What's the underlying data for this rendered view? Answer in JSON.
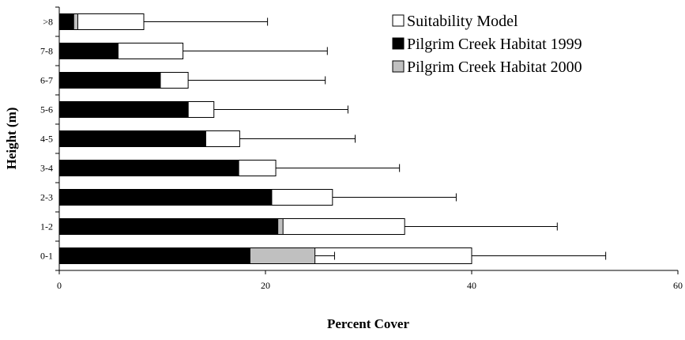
{
  "chart_data": {
    "type": "bar",
    "orientation": "horizontal",
    "stacked": false,
    "title": "",
    "xlabel": "Percent Cover",
    "ylabel": "Height (m)",
    "xlim": [
      0,
      60
    ],
    "xticks": [
      "0",
      "20",
      "40",
      "60"
    ],
    "grid": false,
    "legend_position": "top-right",
    "categories": [
      "0-1",
      "1-2",
      "2-3",
      "3-4",
      "4-5",
      "5-6",
      "6-7",
      "7-8",
      ">8"
    ],
    "series": [
      {
        "name": "Suitability Model",
        "color": "#ffffff",
        "values": [
          40,
          33.5,
          26.5,
          21,
          17.5,
          15,
          12.5,
          12,
          8.2
        ],
        "error": [
          13,
          14.8,
          12,
          12,
          11.2,
          13,
          13.3,
          14,
          12
        ]
      },
      {
        "name": "Pilgrim Creek Habitat 2000",
        "color": "#c0c0c0",
        "values": [
          24.8,
          21.7,
          20.6,
          17.4,
          14.2,
          12.5,
          9.8,
          5.7,
          1.8
        ],
        "error": [
          1.9,
          0,
          0,
          0,
          0,
          0,
          0,
          0,
          0
        ]
      },
      {
        "name": "Pilgrim Creek Habitat 1999",
        "color": "#000000",
        "values": [
          18.5,
          21.2,
          20.6,
          17.4,
          14.2,
          12.5,
          9.8,
          5.7,
          1.4
        ],
        "error": [
          0,
          0,
          0,
          0,
          0,
          0,
          0,
          0,
          0
        ]
      }
    ],
    "legend": [
      {
        "label": "Suitability Model",
        "color": "#ffffff"
      },
      {
        "label": "Pilgrim Creek Habitat 1999",
        "color": "#000000"
      },
      {
        "label": "Pilgrim Creek Habitat 2000",
        "color": "#c0c0c0"
      }
    ]
  }
}
